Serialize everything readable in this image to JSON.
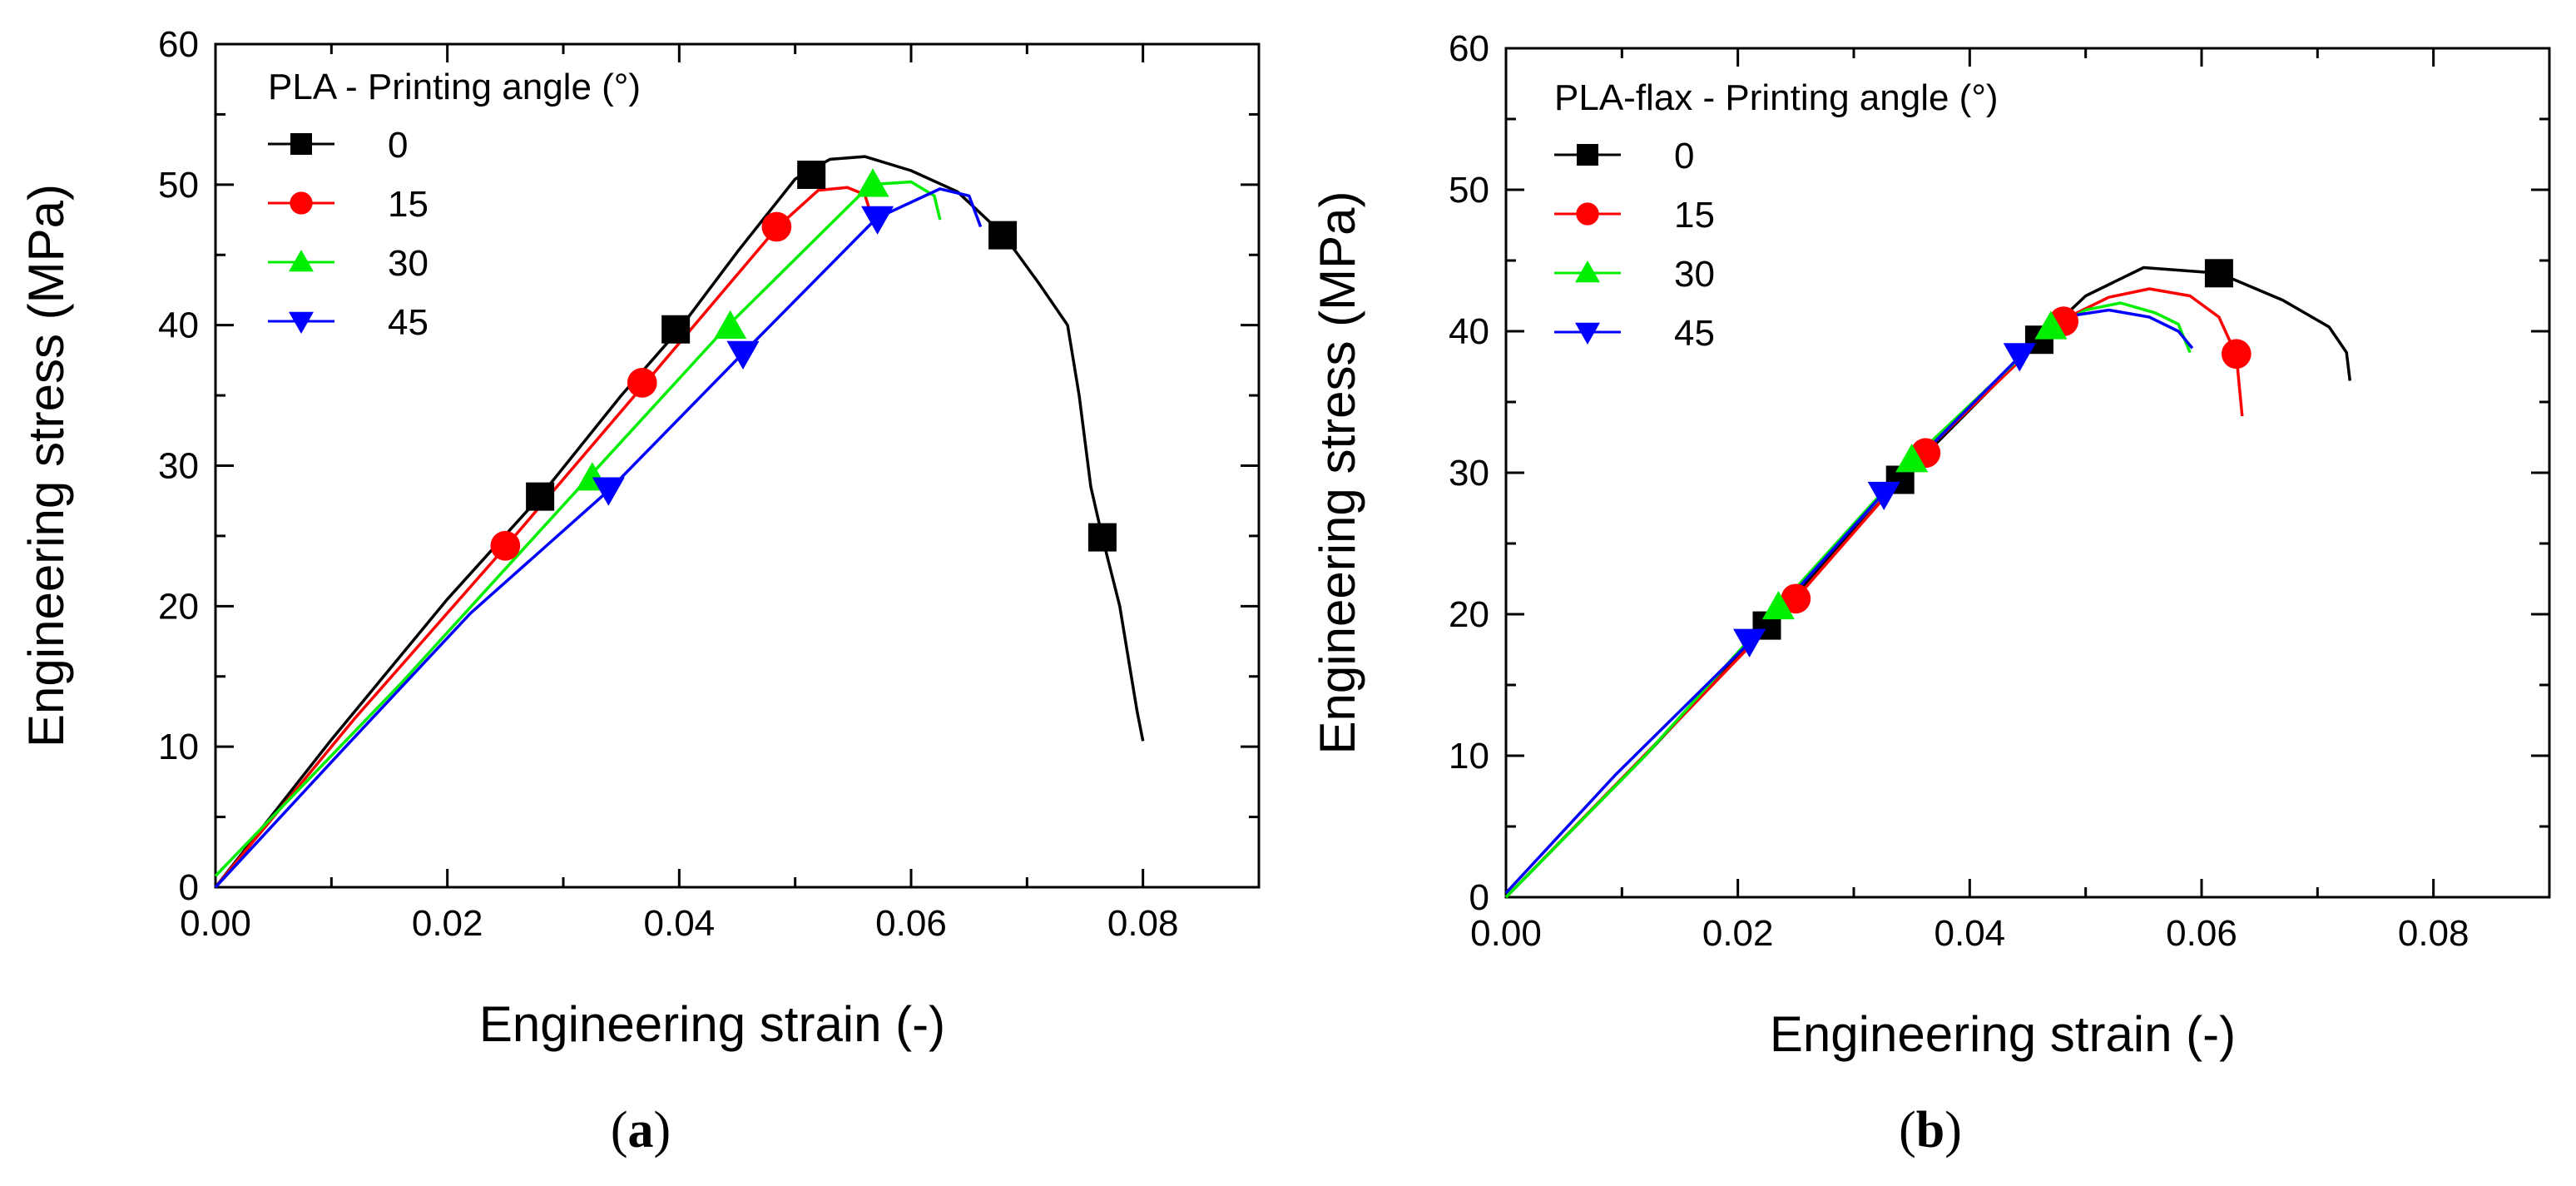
{
  "chart_data": [
    {
      "type": "line",
      "xlabel": "Engineering strain (-)",
      "ylabel": "Engineering stress (MPa)",
      "xlim": [
        0,
        0.09
      ],
      "ylim": [
        0,
        60
      ],
      "xticks": [
        "0.00",
        "0.02",
        "0.04",
        "0.06",
        "0.08"
      ],
      "yticks": [
        "0",
        "10",
        "20",
        "30",
        "40",
        "50",
        "60"
      ],
      "legend": {
        "title": "PLA - Printing angle (°)",
        "placement": "top-left"
      },
      "panel_label": {
        "open": "(",
        "letter": "a",
        "close": ")"
      },
      "series": [
        {
          "name": "0",
          "color": "#000000",
          "marker": "square",
          "x": [
            0,
            0.01,
            0.02,
            0.028,
            0.035,
            0.04,
            0.045,
            0.05,
            0.053,
            0.056,
            0.06,
            0.064,
            0.068,
            0.071,
            0.0735,
            0.0745,
            0.0755,
            0.0765,
            0.078,
            0.079,
            0.0795,
            0.08
          ],
          "y": [
            0,
            10.5,
            20.5,
            27.8,
            35,
            39.7,
            45.2,
            50.4,
            51.8,
            52,
            51,
            49.5,
            46.4,
            43,
            40,
            35,
            28.5,
            24.9,
            20,
            15,
            12.5,
            10.4
          ],
          "markers_x": [
            0.028,
            0.0397,
            0.0514,
            0.0679,
            0.0765
          ],
          "markers_y": [
            27.8,
            39.7,
            50.7,
            46.4,
            24.9
          ]
        },
        {
          "name": "15",
          "color": "#ff0000",
          "marker": "circle",
          "x": [
            0,
            0.012,
            0.025,
            0.037,
            0.0485,
            0.052,
            0.0545,
            0.056,
            0.0565
          ],
          "y": [
            0,
            12,
            24.2,
            35.8,
            47,
            49.6,
            49.8,
            49.3,
            48
          ],
          "markers_x": [
            0.025,
            0.0368,
            0.0484
          ],
          "markers_y": [
            24.3,
            35.9,
            47
          ]
        },
        {
          "name": "30",
          "color": "#00ee00",
          "marker": "triangle-up",
          "x": [
            0,
            0.016,
            0.032,
            0.044,
            0.0565,
            0.06,
            0.062,
            0.0625
          ],
          "y": [
            0.8,
            14.5,
            29,
            39.8,
            50,
            50.2,
            49.2,
            47.5
          ],
          "markers_x": [
            0.0325,
            0.0444,
            0.0567
          ],
          "markers_y": [
            29.1,
            39.9,
            50
          ]
        },
        {
          "name": "45",
          "color": "#0000ff",
          "marker": "triangle-down",
          "x": [
            0,
            0.011,
            0.022,
            0.034,
            0.0455,
            0.057,
            0.0625,
            0.065,
            0.066
          ],
          "y": [
            0,
            9.8,
            19.5,
            28.3,
            38,
            47.6,
            49.7,
            49.2,
            47
          ],
          "markers_x": [
            0.0339,
            0.0455,
            0.0571
          ],
          "markers_y": [
            28.3,
            38,
            47.6
          ]
        }
      ]
    },
    {
      "type": "line",
      "xlabel": "Engineering strain (-)",
      "ylabel": "Engineering stress (MPa)",
      "xlim": [
        0,
        0.09
      ],
      "ylim": [
        0,
        60
      ],
      "xticks": [
        "0.00",
        "0.02",
        "0.04",
        "0.06",
        "0.08"
      ],
      "yticks": [
        "0",
        "10",
        "20",
        "30",
        "40",
        "50",
        "60"
      ],
      "legend": {
        "title": "PLA-flax - Printing angle (°)",
        "placement": "top-left"
      },
      "panel_label": {
        "open": "(",
        "letter": "b",
        "close": ")"
      },
      "series": [
        {
          "name": "0",
          "color": "#000000",
          "marker": "square",
          "x": [
            0,
            0.012,
            0.0225,
            0.034,
            0.046,
            0.05,
            0.055,
            0.0615,
            0.067,
            0.071,
            0.0725,
            0.0728
          ],
          "y": [
            0,
            10,
            19.2,
            29.5,
            39.4,
            42.5,
            44.5,
            44.1,
            42.2,
            40.3,
            38.5,
            36.5
          ],
          "markers_x": [
            0.0225,
            0.034,
            0.046,
            0.0615
          ],
          "markers_y": [
            19.2,
            29.5,
            39.4,
            44.1
          ]
        },
        {
          "name": "15",
          "color": "#ff0000",
          "marker": "circle",
          "x": [
            0,
            0.0125,
            0.025,
            0.036,
            0.048,
            0.052,
            0.0555,
            0.059,
            0.0615,
            0.063,
            0.0635
          ],
          "y": [
            0,
            10.5,
            21.1,
            31.4,
            40.8,
            42.4,
            43,
            42.5,
            41,
            38.3,
            34
          ],
          "markers_x": [
            0.025,
            0.0362,
            0.0481,
            0.063
          ],
          "markers_y": [
            21.1,
            31.4,
            40.7,
            38.4
          ]
        },
        {
          "name": "30",
          "color": "#00ee00",
          "marker": "triangle-up",
          "x": [
            0,
            0.012,
            0.0235,
            0.035,
            0.047,
            0.05,
            0.053,
            0.056,
            0.058,
            0.059
          ],
          "y": [
            0,
            10,
            20.5,
            30.9,
            40.2,
            41.5,
            42,
            41.3,
            40.5,
            38.5
          ],
          "markers_x": [
            0.0235,
            0.035,
            0.047
          ],
          "markers_y": [
            20.5,
            30.9,
            40.3
          ]
        },
        {
          "name": "45",
          "color": "#0000ff",
          "marker": "triangle-down",
          "x": [
            0,
            0.0095,
            0.021,
            0.0325,
            0.0443,
            0.048,
            0.052,
            0.0555,
            0.058,
            0.0592
          ],
          "y": [
            0.3,
            8.7,
            18,
            28.5,
            38.2,
            41,
            41.5,
            41,
            40,
            38.8
          ],
          "markers_x": [
            0.021,
            0.0326,
            0.0443
          ],
          "markers_y": [
            18.1,
            28.5,
            38.3
          ]
        }
      ]
    }
  ]
}
